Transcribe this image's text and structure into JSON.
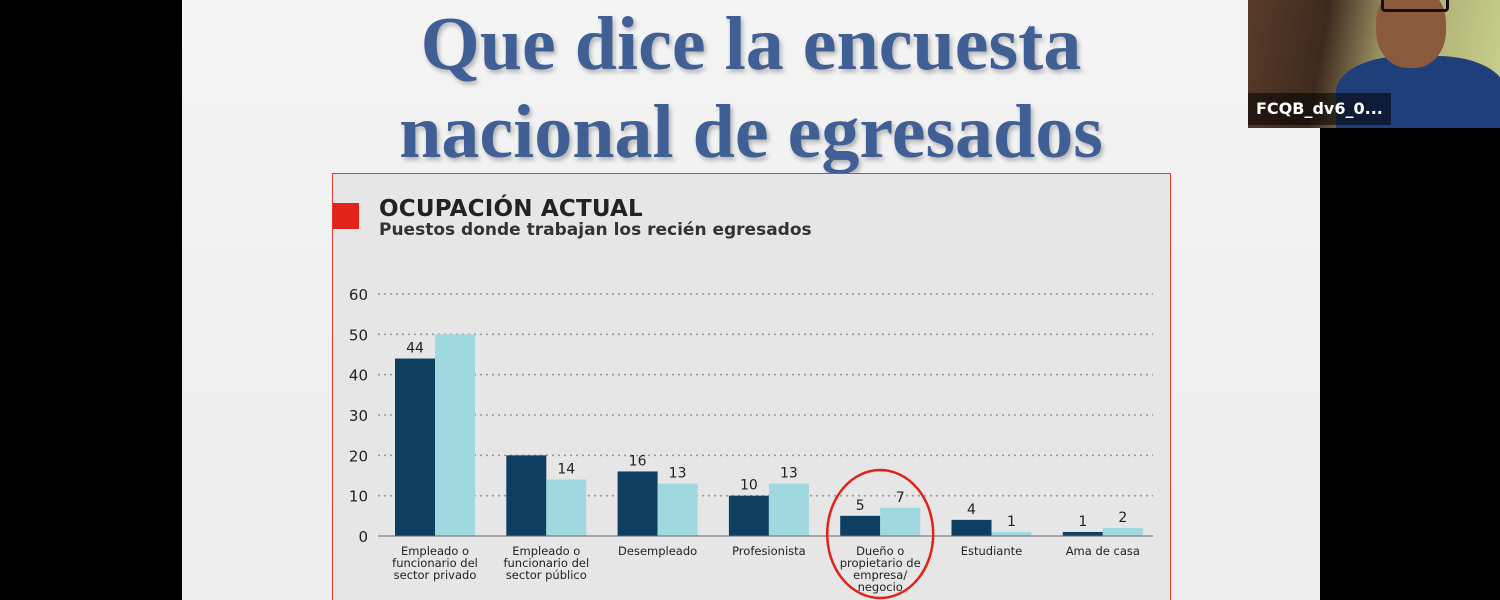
{
  "slide": {
    "title_line1": "Que dice la encuesta",
    "title_line2": "nacional de egresados"
  },
  "video_tile": {
    "participant_name": "FCQB_dv6_0..."
  },
  "colors": {
    "series_dark": "#0e3e60",
    "series_light": "#9fd8de",
    "accent_red": "#e2231a"
  },
  "chart_data": {
    "type": "bar",
    "title": "OCUPACIÓN ACTUAL",
    "subtitle": "Puestos donde trabajan los recién egresados",
    "categories": [
      [
        "Empleado o",
        "funcionario del",
        "sector privado"
      ],
      [
        "Empleado o",
        "funcionario del",
        "sector público"
      ],
      [
        "Desempleado"
      ],
      [
        "Profesionista"
      ],
      [
        "Dueño o",
        "propietario de",
        "empresa/",
        "negocio"
      ],
      [
        "Estudiante"
      ],
      [
        "Ama de casa"
      ]
    ],
    "series": [
      {
        "values": [
          44,
          20,
          16,
          10,
          5,
          4,
          1
        ],
        "labels": [
          "44",
          "",
          "16",
          "10",
          "5",
          "4",
          "1"
        ]
      },
      {
        "values": [
          50,
          14,
          13,
          13,
          7,
          1,
          2
        ],
        "labels": [
          "",
          "14",
          "13",
          "13",
          "7",
          "1",
          "2"
        ]
      }
    ],
    "yticks": [
      0,
      10,
      20,
      30,
      40,
      50,
      60
    ],
    "ylim": [
      0,
      60
    ],
    "grid": true,
    "highlighted_category_index": 4
  }
}
